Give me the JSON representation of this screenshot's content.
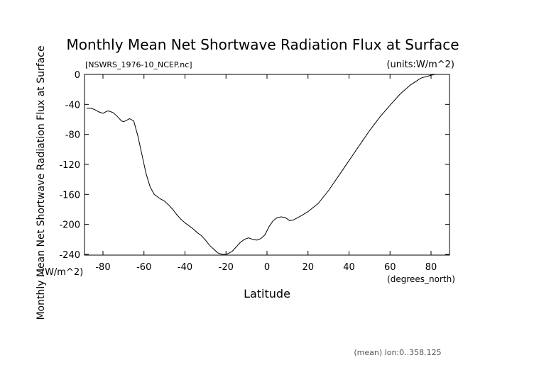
{
  "chart_data": {
    "type": "line",
    "title": "Monthly Mean Net Shortwave Radiation Flux at Surface",
    "source_label": "[NSWRS_1976-10_NCEP.nc]",
    "units_label": "(units:W/m^2)",
    "ylabel": "Monthly Mean Net Shortwave Radiation Flux at Surface",
    "yunit": "(W/m^2)",
    "xlabel": "Latitude",
    "xunit": "(degrees_north)",
    "footnote": "(mean) lon:0..358.125",
    "xlim": [
      -89,
      89
    ],
    "ylim": [
      -241,
      0
    ],
    "x_ticks": [
      -80,
      -60,
      -40,
      -20,
      0,
      20,
      40,
      60,
      80
    ],
    "y_ticks": [
      0,
      -40,
      -80,
      -120,
      -160,
      -200,
      -240
    ],
    "grid": false,
    "series": [
      {
        "x": [
          -88,
          -86,
          -84,
          -82,
          -80,
          -78,
          -77,
          -75,
          -73,
          -71,
          -70,
          -69,
          -67,
          -65,
          -63,
          -61,
          -59,
          -57,
          -55,
          -52,
          -50,
          -48,
          -46,
          -44,
          -42,
          -40,
          -38,
          -36,
          -34,
          -32,
          -30,
          -28,
          -26,
          -24,
          -22,
          -20,
          -19,
          -17,
          -15,
          -13,
          -11,
          -9,
          -7,
          -5,
          -3,
          -1,
          1,
          3,
          5,
          7,
          9,
          11,
          13,
          15,
          17,
          20,
          25,
          30,
          35,
          40,
          45,
          50,
          55,
          60,
          65,
          70,
          75,
          80,
          82,
          85,
          88
        ],
        "y": [
          -45,
          -45,
          -47,
          -50,
          -52,
          -49,
          -49,
          -51,
          -56,
          -62,
          -63,
          -62,
          -59,
          -62,
          -82,
          -107,
          -132,
          -150,
          -160,
          -166,
          -169,
          -174,
          -180,
          -187,
          -193,
          -198,
          -202,
          -206,
          -211,
          -215,
          -221,
          -228,
          -233,
          -238,
          -240,
          -240,
          -239,
          -236,
          -230,
          -224,
          -220,
          -218,
          -220,
          -221,
          -219,
          -214,
          -203,
          -195,
          -191,
          -190,
          -191,
          -195,
          -194,
          -191,
          -188,
          -183,
          -172,
          -155,
          -135,
          -115,
          -95,
          -75,
          -57,
          -41,
          -26,
          -14,
          -5,
          -1,
          0,
          0,
          0
        ]
      }
    ]
  }
}
